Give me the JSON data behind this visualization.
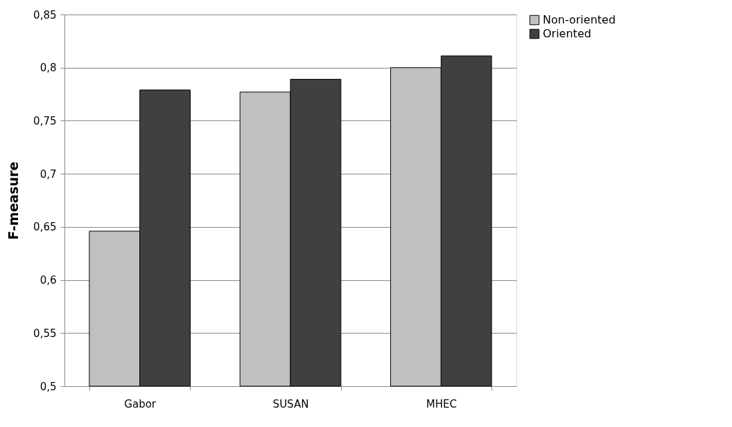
{
  "chart_data": {
    "type": "bar",
    "ylabel": "F-measure",
    "categories": [
      "Gabor",
      "SUSAN",
      "MHEC"
    ],
    "series": [
      {
        "name": "Non-oriented",
        "color": "#c0c0c0",
        "values": [
          0.646,
          0.777,
          0.8
        ]
      },
      {
        "name": "Oriented",
        "color": "#404040",
        "values": [
          0.779,
          0.789,
          0.811
        ]
      }
    ],
    "ylim": [
      0.5,
      0.85
    ],
    "yticks": [
      {
        "value": 0.5,
        "label": "0,5"
      },
      {
        "value": 0.55,
        "label": "0,55"
      },
      {
        "value": 0.6,
        "label": "0,6"
      },
      {
        "value": 0.65,
        "label": "0,65"
      },
      {
        "value": 0.7,
        "label": "0,7"
      },
      {
        "value": 0.75,
        "label": "0,75"
      },
      {
        "value": 0.8,
        "label": "0,8"
      },
      {
        "value": 0.85,
        "label": "0,85"
      }
    ],
    "grid": "y",
    "legend": "right"
  }
}
